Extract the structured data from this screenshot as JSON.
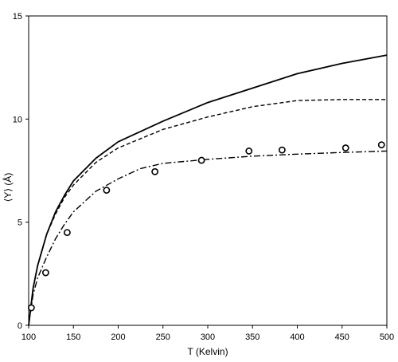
{
  "chart_data": {
    "type": "line",
    "xlabel": "T (Kelvin)",
    "ylabel": "⟨Y⟩ (Å)",
    "xlim": [
      100,
      500
    ],
    "ylim": [
      0,
      15
    ],
    "xticks": [
      100,
      150,
      200,
      250,
      300,
      350,
      400,
      450,
      500
    ],
    "yticks": [
      0,
      5,
      10,
      15
    ],
    "grid": false,
    "series": [
      {
        "style": "solid",
        "x": [
          100,
          105,
          110,
          120,
          130,
          140,
          150,
          175,
          200,
          250,
          300,
          350,
          400,
          450,
          500
        ],
        "y": [
          0,
          1.8,
          2.9,
          4.4,
          5.5,
          6.3,
          7.0,
          8.1,
          8.9,
          9.9,
          10.8,
          11.5,
          12.2,
          12.7,
          13.1
        ]
      },
      {
        "style": "dashed",
        "x": [
          100,
          105,
          110,
          120,
          130,
          140,
          150,
          175,
          200,
          250,
          300,
          350,
          400,
          450,
          500
        ],
        "y": [
          0,
          1.8,
          2.9,
          4.4,
          5.4,
          6.2,
          6.8,
          7.9,
          8.6,
          9.5,
          10.1,
          10.6,
          10.9,
          10.95,
          10.95
        ]
      },
      {
        "style": "dash-dot",
        "x": [
          100,
          105,
          110,
          120,
          130,
          140,
          150,
          175,
          200,
          225,
          250,
          300,
          350,
          400,
          450,
          500
        ],
        "y": [
          0,
          1.5,
          2.3,
          3.3,
          4.2,
          4.9,
          5.5,
          6.5,
          7.1,
          7.6,
          7.85,
          8.05,
          8.2,
          8.3,
          8.38,
          8.45
        ]
      },
      {
        "style": "markers-circle",
        "x": [
          103,
          119,
          143,
          187,
          241,
          293,
          346,
          383,
          454,
          494
        ],
        "y": [
          0.85,
          2.55,
          4.5,
          6.55,
          7.45,
          8.0,
          8.45,
          8.5,
          8.6,
          8.75
        ]
      }
    ]
  }
}
